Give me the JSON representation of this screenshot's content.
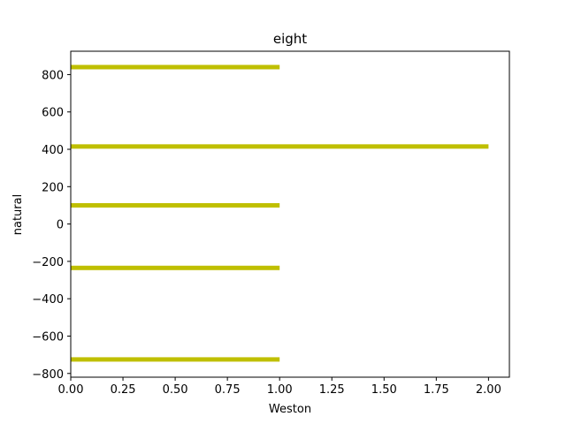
{
  "chart_data": {
    "type": "bar",
    "orientation": "horizontal",
    "title": "eight",
    "xlabel": "Weston",
    "ylabel": "natural",
    "bars": [
      {
        "y": 840,
        "value": 1.0
      },
      {
        "y": 415,
        "value": 2.0
      },
      {
        "y": 100,
        "value": 1.0
      },
      {
        "y": -235,
        "value": 1.0
      },
      {
        "y": -725,
        "value": 1.0
      }
    ],
    "xlim": [
      0,
      2.1
    ],
    "ylim": [
      -820,
      925
    ],
    "xticks": [
      0.0,
      0.25,
      0.5,
      0.75,
      1.0,
      1.25,
      1.5,
      1.75,
      2.0
    ],
    "xtick_labels": [
      "0.00",
      "0.25",
      "0.50",
      "0.75",
      "1.00",
      "1.25",
      "1.50",
      "1.75",
      "2.00"
    ],
    "yticks": [
      800,
      600,
      400,
      200,
      0,
      -200,
      -400,
      -600,
      -800
    ],
    "ytick_labels": [
      "800",
      "600",
      "400",
      "200",
      "0",
      "−200",
      "−400",
      "−600",
      "−800"
    ],
    "bar_color": "#bfbf00",
    "grid": false,
    "legend": "none"
  }
}
